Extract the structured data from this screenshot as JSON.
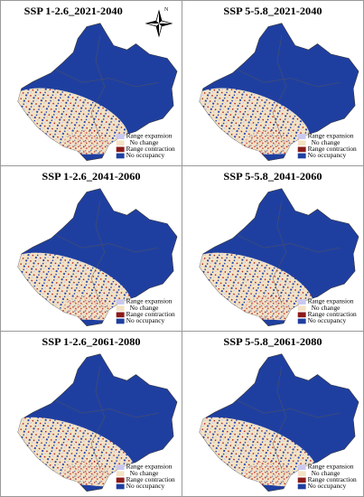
{
  "panels": [
    {
      "title": "SSP 1-2.6_2021-2040",
      "legend": [
        "Range expansion",
        "No change",
        "Range contraction",
        "No occupancy"
      ]
    },
    {
      "title": "SSP 5-5.8_2021-2040",
      "legend": [
        "Range expansion",
        "No change",
        "Range contraction",
        "No occupancy"
      ]
    },
    {
      "title": "SSP 1-2.6_2041-2060",
      "legend": [
        "Range expansion",
        "No change",
        "Range contraction",
        "No occupancy"
      ]
    },
    {
      "title": "SSP 5-5.8_2041-2060",
      "legend": [
        "Range expansion",
        "No change",
        "Range contraction",
        "No occupancy"
      ]
    },
    {
      "title": "SSP 1-2.6_2061-2080",
      "legend": [
        "Range expansion",
        "No change",
        "Range contraction",
        "No occupancy"
      ]
    },
    {
      "title": "SSP 5-5.8_2061-2080",
      "legend": [
        "Range expansion",
        "No change",
        "Range contraction",
        "No occupancy"
      ]
    }
  ],
  "compass": "N"
}
